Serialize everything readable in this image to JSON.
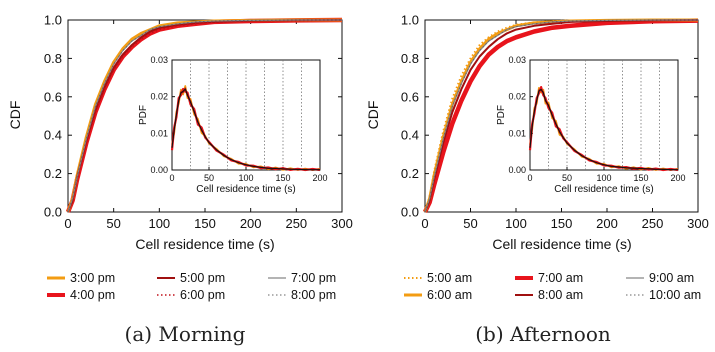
{
  "chart_data": [
    {
      "type": "line",
      "caption": "(a) Morning",
      "xlabel": "Cell residence time (s)",
      "ylabel": "CDF",
      "xlim": [
        0,
        300
      ],
      "ylim": [
        0,
        1.0
      ],
      "xticks": [
        0,
        50,
        100,
        150,
        200,
        250,
        300
      ],
      "yticks": [
        "0.0",
        "0.2",
        "0.4",
        "0.6",
        "0.8",
        "1.0"
      ],
      "legend": [
        {
          "label": "3:00 pm",
          "color": "#f39c12",
          "style": "solid",
          "width": 3
        },
        {
          "label": "4:00 pm",
          "color": "#e8141c",
          "style": "solid",
          "width": 4.5
        },
        {
          "label": "5:00 pm",
          "color": "#a01010",
          "style": "solid",
          "width": 2
        },
        {
          "label": "6:00 pm",
          "color": "#c0101a",
          "style": "dotted",
          "width": 1.6
        },
        {
          "label": "7:00 pm",
          "color": "#888888",
          "style": "solid",
          "width": 1.2
        },
        {
          "label": "8:00 pm",
          "color": "#666666",
          "style": "dotted",
          "width": 1
        }
      ],
      "cdf_x": [
        0,
        5,
        10,
        20,
        30,
        40,
        50,
        60,
        70,
        80,
        90,
        100,
        120,
        140,
        160,
        200,
        250,
        300
      ],
      "series": [
        {
          "name": "4:00 pm",
          "values": [
            0,
            0.06,
            0.17,
            0.36,
            0.52,
            0.64,
            0.74,
            0.81,
            0.86,
            0.9,
            0.93,
            0.95,
            0.97,
            0.98,
            0.99,
            0.995,
            0.998,
            1.0
          ]
        },
        {
          "name": "3:00 pm",
          "values": [
            0,
            0.07,
            0.19,
            0.39,
            0.56,
            0.68,
            0.78,
            0.85,
            0.9,
            0.93,
            0.95,
            0.97,
            0.985,
            0.99,
            0.995,
            0.998,
            1.0,
            1.0
          ]
        },
        {
          "name": "5:00 pm",
          "values": [
            0,
            0.06,
            0.18,
            0.37,
            0.53,
            0.65,
            0.75,
            0.82,
            0.87,
            0.91,
            0.94,
            0.96,
            0.975,
            0.985,
            0.99,
            0.996,
            0.999,
            1.0
          ]
        },
        {
          "name": "6:00 pm",
          "values": [
            0,
            0.06,
            0.17,
            0.36,
            0.52,
            0.64,
            0.74,
            0.81,
            0.86,
            0.9,
            0.93,
            0.95,
            0.97,
            0.98,
            0.99,
            0.995,
            0.998,
            1.0
          ]
        },
        {
          "name": "7:00 pm",
          "values": [
            0,
            0.07,
            0.18,
            0.38,
            0.55,
            0.67,
            0.77,
            0.84,
            0.89,
            0.92,
            0.95,
            0.965,
            0.98,
            0.99,
            0.995,
            0.998,
            1.0,
            1.0
          ]
        },
        {
          "name": "8:00 pm",
          "values": [
            0,
            0.07,
            0.18,
            0.38,
            0.55,
            0.67,
            0.77,
            0.84,
            0.89,
            0.92,
            0.95,
            0.965,
            0.98,
            0.99,
            0.995,
            0.998,
            1.0,
            1.0
          ]
        }
      ],
      "inset": {
        "xlabel": "Cell residence time (s)",
        "ylabel": "PDF",
        "xlim": [
          0,
          200
        ],
        "ylim": [
          0,
          0.03
        ],
        "xticks": [
          0,
          50,
          100,
          150,
          200
        ],
        "yticks": [
          "0.00",
          "0.01",
          "0.02",
          "0.03"
        ],
        "vgrid": [
          25,
          50,
          75,
          100,
          125,
          150,
          175
        ],
        "pdf_x": [
          0,
          3,
          6,
          9,
          12,
          15,
          18,
          21,
          25,
          30,
          35,
          40,
          45,
          50,
          60,
          70,
          80,
          90,
          100,
          110,
          120,
          130,
          140,
          150,
          160,
          170,
          180,
          190,
          200
        ],
        "pdf": [
          0.006,
          0.011,
          0.015,
          0.019,
          0.021,
          0.0215,
          0.022,
          0.0205,
          0.0185,
          0.016,
          0.013,
          0.011,
          0.009,
          0.0075,
          0.0055,
          0.004,
          0.0028,
          0.002,
          0.0014,
          0.001,
          0.0007,
          0.0005,
          0.0004,
          0.0003,
          0.0002,
          0.00015,
          0.0001,
          8e-05,
          5e-05
        ]
      }
    },
    {
      "type": "line",
      "caption": "(b) Afternoon",
      "xlabel": "Cell residence time (s)",
      "ylabel": "CDF",
      "xlim": [
        0,
        300
      ],
      "ylim": [
        0,
        1.0
      ],
      "xticks": [
        0,
        50,
        100,
        150,
        200,
        250,
        300
      ],
      "yticks": [
        "0.0",
        "0.2",
        "0.4",
        "0.6",
        "0.8",
        "1.0"
      ],
      "legend": [
        {
          "label": "5:00 am",
          "color": "#f39c12",
          "style": "dotted",
          "width": 2
        },
        {
          "label": "6:00 am",
          "color": "#f39c12",
          "style": "solid",
          "width": 3
        },
        {
          "label": "7:00 am",
          "color": "#e8141c",
          "style": "solid",
          "width": 4.5
        },
        {
          "label": "8:00 am",
          "color": "#a01010",
          "style": "solid",
          "width": 2
        },
        {
          "label": "9:00 am",
          "color": "#888888",
          "style": "solid",
          "width": 1.2
        },
        {
          "label": "10:00 am",
          "color": "#666666",
          "style": "dotted",
          "width": 1
        }
      ],
      "cdf_x": [
        0,
        5,
        10,
        20,
        30,
        40,
        50,
        60,
        70,
        80,
        90,
        100,
        120,
        140,
        160,
        200,
        250,
        300
      ],
      "series": [
        {
          "name": "7:00 am",
          "values": [
            0,
            0.05,
            0.14,
            0.31,
            0.46,
            0.58,
            0.68,
            0.76,
            0.82,
            0.86,
            0.89,
            0.91,
            0.94,
            0.96,
            0.97,
            0.985,
            0.993,
            0.997
          ]
        },
        {
          "name": "5:00 am",
          "values": [
            0,
            0.08,
            0.21,
            0.42,
            0.59,
            0.71,
            0.8,
            0.87,
            0.91,
            0.94,
            0.96,
            0.975,
            0.988,
            0.994,
            0.997,
            0.999,
            1.0,
            1.0
          ]
        },
        {
          "name": "6:00 am",
          "values": [
            0,
            0.07,
            0.19,
            0.39,
            0.56,
            0.68,
            0.78,
            0.85,
            0.9,
            0.93,
            0.95,
            0.97,
            0.985,
            0.99,
            0.995,
            0.998,
            1.0,
            1.0
          ]
        },
        {
          "name": "8:00 am",
          "values": [
            0,
            0.06,
            0.17,
            0.36,
            0.52,
            0.64,
            0.74,
            0.81,
            0.86,
            0.9,
            0.93,
            0.95,
            0.97,
            0.98,
            0.99,
            0.995,
            0.998,
            1.0
          ]
        },
        {
          "name": "9:00 am",
          "values": [
            0,
            0.07,
            0.18,
            0.38,
            0.55,
            0.67,
            0.77,
            0.84,
            0.89,
            0.92,
            0.95,
            0.965,
            0.98,
            0.99,
            0.995,
            0.998,
            1.0,
            1.0
          ]
        },
        {
          "name": "10:00 am",
          "values": [
            0,
            0.07,
            0.18,
            0.38,
            0.55,
            0.67,
            0.77,
            0.84,
            0.89,
            0.92,
            0.95,
            0.965,
            0.98,
            0.99,
            0.995,
            0.998,
            1.0,
            1.0
          ]
        }
      ],
      "inset": {
        "xlabel": "Cell residence time (s)",
        "ylabel": "PDF",
        "xlim": [
          0,
          200
        ],
        "ylim": [
          0,
          0.03
        ],
        "xticks": [
          0,
          50,
          100,
          150,
          200
        ],
        "yticks": [
          "0.00",
          "0.01",
          "0.02",
          "0.03"
        ],
        "vgrid": [
          25,
          50,
          75,
          100,
          125,
          150,
          175
        ],
        "pdf_x": [
          0,
          3,
          6,
          9,
          12,
          15,
          18,
          21,
          25,
          30,
          35,
          40,
          45,
          50,
          60,
          70,
          80,
          90,
          100,
          110,
          120,
          130,
          140,
          150,
          160,
          170,
          180,
          190,
          200
        ],
        "pdf": [
          0.006,
          0.012,
          0.016,
          0.019,
          0.0215,
          0.022,
          0.021,
          0.019,
          0.0175,
          0.015,
          0.0125,
          0.0105,
          0.0088,
          0.0074,
          0.0054,
          0.0039,
          0.0028,
          0.002,
          0.0014,
          0.001,
          0.0008,
          0.0006,
          0.0005,
          0.0004,
          0.0003,
          0.0002,
          0.00015,
          0.0001,
          8e-05
        ]
      }
    }
  ]
}
